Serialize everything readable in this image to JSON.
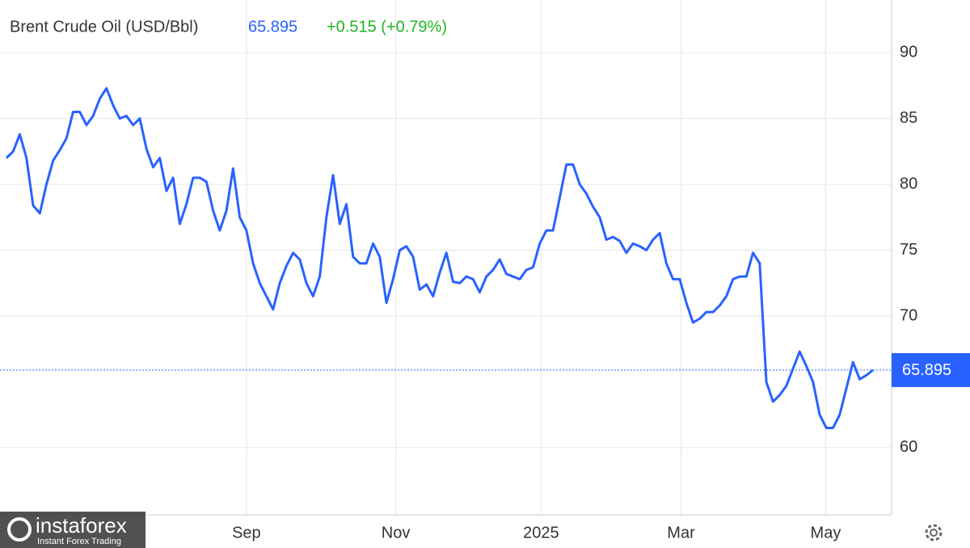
{
  "chart_data": {
    "type": "line",
    "title": "Brent Crude Oil (USD/Bbl)",
    "price": 65.895,
    "change_label": "+0.515 (+0.79%)",
    "series": [
      {
        "name": "Brent Crude Oil",
        "color": "#2962ff",
        "values": [
          82.0,
          82.5,
          83.8,
          82.0,
          78.4,
          77.8,
          80.0,
          81.8,
          82.6,
          83.5,
          85.5,
          85.5,
          84.5,
          85.2,
          86.5,
          87.3,
          86.0,
          85.0,
          85.2,
          84.5,
          85.0,
          82.7,
          81.3,
          82.0,
          79.5,
          80.5,
          77.0,
          78.5,
          80.5,
          80.5,
          80.2,
          78.0,
          76.5,
          78.0,
          81.2,
          77.5,
          76.5,
          74.0,
          72.5,
          71.5,
          70.5,
          72.5,
          73.8,
          74.8,
          74.3,
          72.5,
          71.5,
          73.0,
          77.5,
          80.7,
          77.0,
          78.5,
          74.5,
          74.0,
          74.0,
          75.5,
          74.5,
          71.0,
          72.8,
          75.0,
          75.3,
          74.5,
          72.0,
          72.4,
          71.5,
          73.3,
          74.8,
          72.6,
          72.5,
          73.0,
          72.8,
          71.8,
          73.0,
          73.5,
          74.3,
          73.2,
          73.0,
          72.8,
          73.5,
          73.7,
          75.5,
          76.5,
          76.5,
          79.0,
          81.5,
          81.5,
          80.0,
          79.3,
          78.3,
          77.5,
          75.8,
          76.0,
          75.7,
          74.8,
          75.5,
          75.3,
          75.0,
          75.8,
          76.3,
          74.0,
          72.8,
          72.8,
          71.0,
          69.5,
          69.8,
          70.3,
          70.3,
          70.8,
          71.5,
          72.8,
          73.0,
          73.0,
          74.8,
          74.0,
          65.0,
          63.5,
          64.0,
          64.7,
          66.0,
          67.3,
          66.2,
          65.0,
          62.5,
          61.5,
          61.5,
          62.5,
          64.5,
          66.5,
          65.2,
          65.5,
          65.895
        ]
      }
    ],
    "xlim": [
      0,
      130
    ],
    "xticks": [
      {
        "value": 36,
        "label": "Sep"
      },
      {
        "value": 58.4,
        "label": "Nov"
      },
      {
        "value": 80.2,
        "label": "2025"
      },
      {
        "value": 101.2,
        "label": "Mar"
      },
      {
        "value": 122.9,
        "label": "May"
      }
    ],
    "ylim": [
      54.9,
      94
    ],
    "yticks": [
      60,
      70,
      75,
      80,
      85,
      90
    ],
    "grid": true,
    "watermark": {
      "name": "instaforex",
      "tagline": "Instant Forex Trading"
    }
  }
}
